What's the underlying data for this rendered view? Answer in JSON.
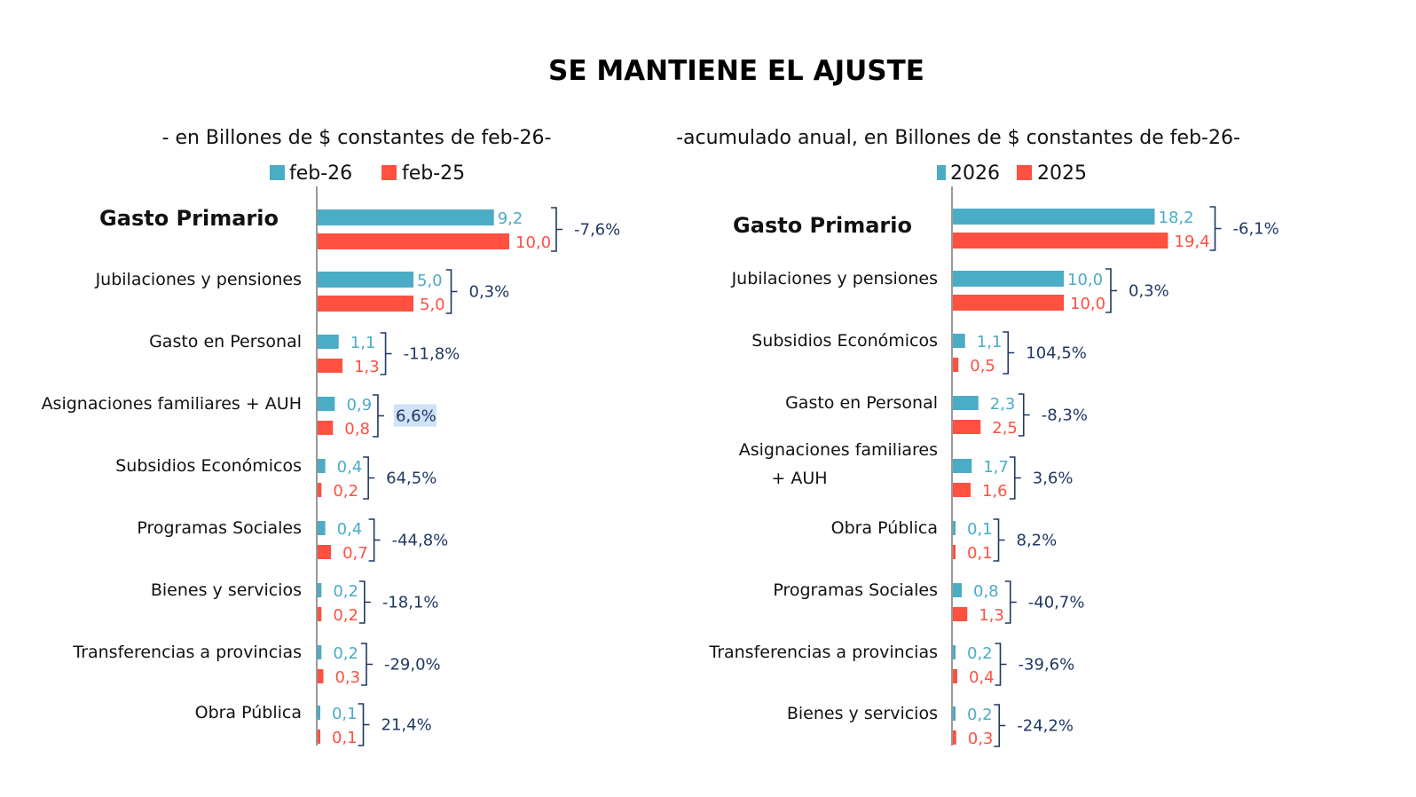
{
  "title": "SE MANTIENE EL AJUSTE",
  "colors": {
    "series_a": "#4bacc6",
    "series_b": "#ff5040",
    "pct_text": "#1f3864",
    "axis": "#999999",
    "highlight": "#cfe2f7"
  },
  "chart_data": [
    {
      "type": "bar",
      "orientation": "horizontal",
      "subtitle": "- en Billones de $ constantes de feb-26-",
      "legend": [
        "feb-26",
        "feb-25"
      ],
      "legend_position": "top",
      "grid": false,
      "categories": [
        "Gasto Primario",
        "Jubilaciones y pensiones",
        "Gasto en Personal",
        "Asignaciones familiares + AUH",
        "Subsidios Económicos",
        "Programas Sociales",
        "Bienes y servicios",
        "Transferencias a provincias",
        "Obra Pública"
      ],
      "series": [
        {
          "name": "feb-26",
          "values": [
            9.2,
            5.0,
            1.1,
            0.9,
            0.4,
            0.4,
            0.2,
            0.2,
            0.1
          ],
          "labels": [
            "9,2",
            "5,0",
            "1,1",
            "0,9",
            "0,4",
            "0,4",
            "0,2",
            "0,2",
            "0,1"
          ]
        },
        {
          "name": "feb-25",
          "values": [
            10.0,
            5.0,
            1.3,
            0.8,
            0.2,
            0.7,
            0.2,
            0.3,
            0.1
          ],
          "labels": [
            "10,0",
            "5,0",
            "1,3",
            "0,8",
            "0,2",
            "0,7",
            "0,2",
            "0,3",
            "0,1"
          ]
        }
      ],
      "variation": [
        "-7,6%",
        "0,3%",
        "-11,8%",
        "6,6%",
        "64,5%",
        "-44,8%",
        "-18,1%",
        "-29,0%",
        "21,4%"
      ],
      "highlighted_variation": "6,6%"
    },
    {
      "type": "bar",
      "orientation": "horizontal",
      "subtitle": "-acumulado anual, en Billones de $ constantes de feb-26-",
      "legend": [
        "2026",
        "2025"
      ],
      "legend_position": "top",
      "grid": false,
      "categories": [
        "Gasto Primario",
        "Jubilaciones y pensiones",
        "Subsidios Económicos",
        "Gasto en Personal",
        "Asignaciones familiares + AUH",
        "Obra Pública",
        "Programas Sociales",
        "Transferencias a provincias",
        "Bienes y servicios"
      ],
      "series": [
        {
          "name": "2026",
          "values": [
            18.2,
            10.0,
            1.1,
            2.3,
            1.7,
            0.1,
            0.8,
            0.2,
            0.2
          ],
          "labels": [
            "18,2",
            "10,0",
            "1,1",
            "2,3",
            "1,7",
            "0,1",
            "0,8",
            "0,2",
            "0,2"
          ]
        },
        {
          "name": "2025",
          "values": [
            19.4,
            10.0,
            0.5,
            2.5,
            1.6,
            0.1,
            1.3,
            0.4,
            0.3
          ],
          "labels": [
            "19,4",
            "10,0",
            "0,5",
            "2,5",
            "1,6",
            "0,1",
            "1,3",
            "0,4",
            "0,3"
          ]
        }
      ],
      "variation": [
        "-6,1%",
        "0,3%",
        "104,5%",
        "-8,3%",
        "3,6%",
        "8,2%",
        "-40,7%",
        "-39,6%",
        "-24,2%"
      ]
    }
  ]
}
